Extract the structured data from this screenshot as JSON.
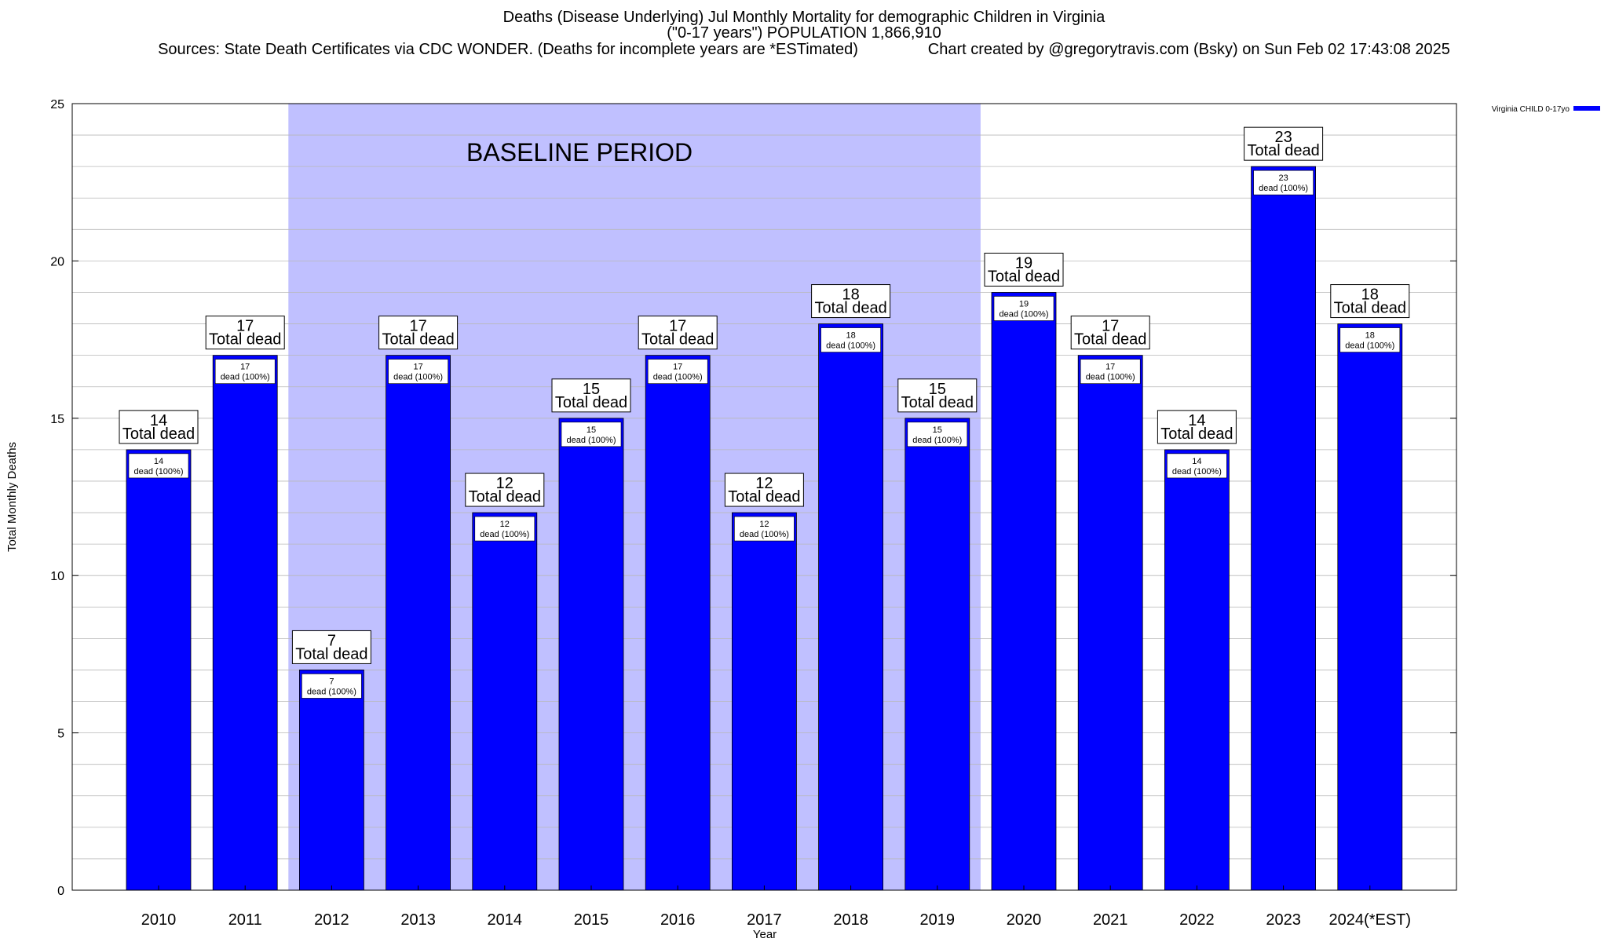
{
  "chart_data": {
    "type": "bar",
    "title": "Deaths (Disease Underlying) Jul Monthly Mortality for demographic Children in Virginia",
    "subtitle": "(\"0-17 years\") POPULATION 1,866,910",
    "sources": "Sources: State Death Certificates via CDC WONDER. (Deaths for incomplete years are *ESTimated)",
    "credit": "Chart created by @gregorytravis.com (Bsky) on Sun Feb 02 17:43:08 2025",
    "xlabel": "Year",
    "ylabel": "Total Monthly Deaths",
    "ylim": [
      0,
      25
    ],
    "yticks": [
      0,
      5,
      10,
      15,
      20,
      25
    ],
    "grid": true,
    "legend_position": "top-right",
    "categories": [
      "2010",
      "2011",
      "2012",
      "2013",
      "2014",
      "2015",
      "2016",
      "2017",
      "2018",
      "2019",
      "2020",
      "2021",
      "2022",
      "2023",
      "2024(*EST)"
    ],
    "series": [
      {
        "name": "Virginia CHILD 0-17yo",
        "color": "#0000ff",
        "values": [
          14,
          17,
          7,
          17,
          12,
          15,
          17,
          12,
          18,
          15,
          19,
          17,
          14,
          23,
          18
        ]
      }
    ],
    "bar_label_text": "Total dead",
    "bar_inner_label_text": "dead (100%)",
    "baseline": {
      "label": "BASELINE PERIOD",
      "from_category": "2012",
      "to_category": "2019",
      "color": "#c0c0ff"
    }
  }
}
